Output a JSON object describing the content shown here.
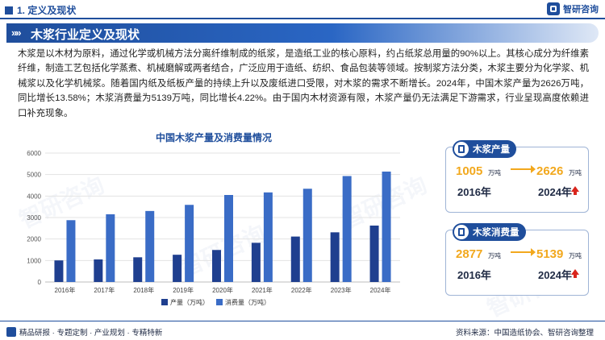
{
  "header": {
    "section_label": "1. 定义及现状",
    "logo_text": "智研咨询"
  },
  "title": "木浆行业定义及现状",
  "intro": "木浆是以木材为原料，通过化学或机械方法分离纤维制成的纸浆，是造纸工业的核心原料，约占纸浆总用量的90%以上。其核心成分为纤维素纤维，制造工艺包括化学蒸煮、机械磨解或两者结合，广泛应用于造纸、纺织、食品包装等领域。按制浆方法分类，木浆主要分为化学浆、机械浆以及化学机械浆。随着国内纸及纸板产量的持续上升以及废纸进口受限，对木浆的需求不断增长。2024年，中国木浆产量为2626万吨，同比增长13.58%；木浆消费量为5139万吨，同比增长4.22%。由于国内木材资源有限，木浆产量仍无法满足下游需求，行业呈现高度依赖进口补充现象。",
  "chart_data": {
    "type": "bar",
    "title": "中国木浆产量及消费量情况",
    "categories": [
      "2016年",
      "2017年",
      "2018年",
      "2019年",
      "2020年",
      "2021年",
      "2022年",
      "2023年",
      "2024年"
    ],
    "series": [
      {
        "name": "产量（万吨）",
        "color": "#1f3f8f",
        "values": [
          1005,
          1050,
          1150,
          1268,
          1490,
          1824,
          2115,
          2312,
          2626
        ]
      },
      {
        "name": "消费量（万吨）",
        "color": "#3a6cc6",
        "values": [
          2877,
          3152,
          3305,
          3590,
          4050,
          4170,
          4340,
          4931,
          5139
        ]
      }
    ],
    "ylim": [
      0,
      6000
    ],
    "yticks": [
      0,
      1000,
      2000,
      3000,
      4000,
      5000,
      6000
    ],
    "xlabel": "",
    "ylabel": "",
    "grid": true,
    "legend_position": "bottom"
  },
  "cards": [
    {
      "label": "木浆产量",
      "start_value": "1005",
      "start_unit": "万吨",
      "start_year": "2016年",
      "end_value": "2626",
      "end_unit": "万吨",
      "end_year": "2024年"
    },
    {
      "label": "木浆消费量",
      "start_value": "2877",
      "start_unit": "万吨",
      "start_year": "2016年",
      "end_value": "5139",
      "end_unit": "万吨",
      "end_year": "2024年"
    }
  ],
  "footer": {
    "left": "精品研报 · 专题定制 · 产业规划 · 专精特新",
    "source": "资料来源：中国造纸协会、智研咨询整理"
  },
  "watermark": "智研咨询",
  "colors": {
    "brand": "#1f4e9c",
    "accent": "#f2a81d",
    "up": "#d9251c"
  }
}
